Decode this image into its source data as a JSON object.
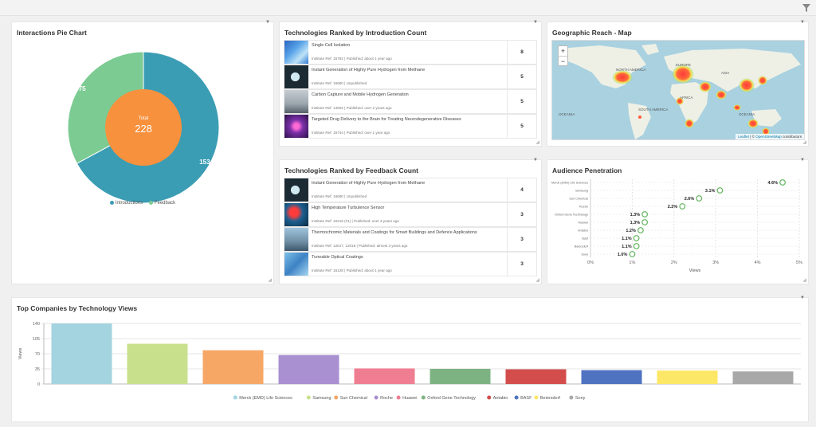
{
  "pie_panel": {
    "title": "Interactions Pie Chart",
    "center_label": "Total",
    "center_value": "228",
    "slices": [
      {
        "name": "Introductions",
        "value": 153,
        "label": "153",
        "color": "#3b9db4"
      },
      {
        "name": "Feedback",
        "value": 75,
        "label": "75",
        "color": "#7ccb93"
      }
    ],
    "center_color": "#f7913d",
    "legend": [
      "Introductions",
      "Feedback"
    ]
  },
  "intro_panel": {
    "title": "Technologies Ranked by Introduction Count",
    "rows": [
      {
        "title": "Single Cell Isolation",
        "meta": "Institute Ref: 15782 | Published: about 1 year ago",
        "count": "8",
        "thumb": "cells"
      },
      {
        "title": "Instant Generation of Highly Pure Hydrogen from Methane",
        "meta": "Institute Ref: 16680 | Unpublished",
        "count": "5",
        "thumb": "hydrogen"
      },
      {
        "title": "Carbon Capture and Mobile Hydrogen Generation",
        "meta": "Institute Ref: 14902 | Published: over 2 years ago",
        "count": "5",
        "thumb": "smoke"
      },
      {
        "title": "Targeted Drug Delivery to the Brain for Treating Neurodegenerative Diseases",
        "meta": "Institute Ref: 15744 | Published: over 1 year ago",
        "count": "5",
        "thumb": "neuron"
      }
    ]
  },
  "map_panel": {
    "title": "Geographic Reach - Map",
    "zoom_in": "+",
    "zoom_out": "−",
    "labels": [
      "NORTH AMERICA",
      "EUROPE",
      "ASIA",
      "AFRICA",
      "SOUTH AMERICA",
      "OCEANIA",
      "OCEANIA"
    ],
    "attribution_link1": "Leaflet",
    "attribution_sep": " | © ",
    "attribution_link2": "OpenStreetMap",
    "attribution_tail": " contributors"
  },
  "feedback_panel": {
    "title": "Technologies Ranked by Feedback Count",
    "rows": [
      {
        "title": "Instant Generation of Highly Pure Hydrogen from Methane",
        "meta": "Institute Ref: 16680 | Unpublished",
        "count": "4",
        "thumb": "hydrogen"
      },
      {
        "title": "High Temperature Turbulence Sensor",
        "meta": "Institute Ref: 10216 (#1) | Published: over 3 years ago",
        "count": "3",
        "thumb": "turbine"
      },
      {
        "title": "Thermochromic Materials and Coatings for Smart Buildings and Defence Applications",
        "meta": "Institute Ref: 12017, 12018 | Published: almost 3 years ago",
        "count": "3",
        "thumb": "buildings"
      },
      {
        "title": "Tuneable Optical Coatings",
        "meta": "Institute Ref: 16128 | Published: about 1 year ago",
        "count": "3",
        "thumb": "glass"
      }
    ]
  },
  "audience_panel": {
    "title": "Audience Penetration",
    "xlabel": "Views",
    "chart_data": {
      "type": "scatter",
      "categories": [
        "Merck (EMD) Life Sciences",
        "Samsung",
        "Sun Chemical",
        "Roche",
        "Oxford Gene Technology",
        "Huawei",
        "Antabio",
        "Basf",
        "Beiersdorf",
        "Sony"
      ],
      "values": [
        4.6,
        3.1,
        2.6,
        2.2,
        1.3,
        1.3,
        1.2,
        1.1,
        1.1,
        1.0
      ],
      "value_labels": [
        "4.6%",
        "3.1%",
        "2.6%",
        "2.2%",
        "1.3%",
        "1.3%",
        "1.2%",
        "1.1%",
        "1.1%",
        "1.0%"
      ],
      "xlim": [
        0,
        5
      ],
      "xticks": [
        "0%",
        "1%",
        "2%",
        "3%",
        "4%",
        "5%"
      ],
      "xlabel": "Views",
      "marker_color": "#62b55f"
    }
  },
  "companies_panel": {
    "title": "Top Companies by Technology Views",
    "chart_data": {
      "type": "bar",
      "categories": [
        "Merck (EMD) Life Sciences",
        "Samsung",
        "Sun Chemical",
        "Roche",
        "Huawei",
        "Oxford Gene Technology",
        "Antabio",
        "BASF",
        "Beiersdorf",
        "Sony"
      ],
      "values": [
        140,
        93,
        78,
        67,
        36,
        35,
        34,
        32,
        31,
        29
      ],
      "colors": [
        "#a3d4df",
        "#c8e08c",
        "#f6a766",
        "#a990d0",
        "#ef7e92",
        "#7db383",
        "#d44d4d",
        "#4f73c1",
        "#fde766",
        "#a8a8a8"
      ],
      "ylabel": "Views",
      "ylim": [
        0,
        140
      ],
      "yticks": [
        0,
        35,
        70,
        105,
        140
      ]
    }
  }
}
